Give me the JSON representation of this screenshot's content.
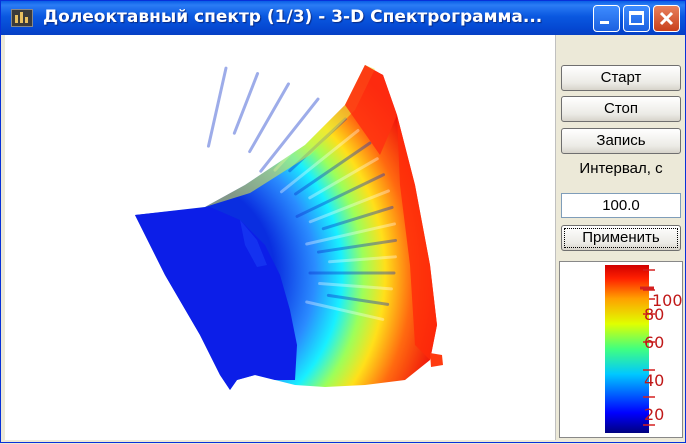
{
  "window": {
    "title": "Долеоктавный спектр (1/3) - 3-D Спектрограмма..."
  },
  "controls": {
    "start_label": "Старт",
    "stop_label": "Стоп",
    "record_label": "Запись",
    "interval_label": "Интервал, с",
    "interval_value": "100.0",
    "apply_label": "Применить"
  },
  "colorbar": {
    "ticks": [
      "20",
      "40",
      "60",
      "80",
      "100"
    ]
  }
}
